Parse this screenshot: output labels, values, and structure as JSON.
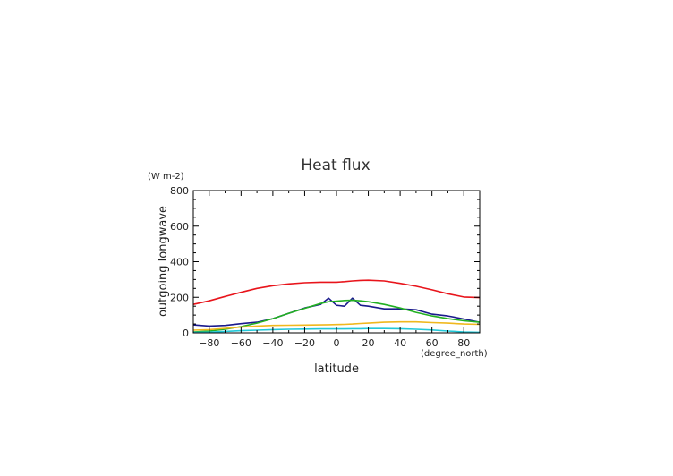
{
  "chart_data": {
    "type": "line",
    "title": "Heat flux",
    "xlabel": "latitude",
    "ylabel": "outgoing longwave",
    "xunits": "(degree_north)",
    "yunits": "(W m-2)",
    "xlim": [
      -90,
      90
    ],
    "ylim": [
      0,
      800
    ],
    "xticks": [
      -80,
      -60,
      -40,
      -20,
      0,
      20,
      40,
      60,
      80
    ],
    "yticks": [
      0,
      200,
      400,
      600,
      800
    ],
    "grid": false,
    "x": [
      -90,
      -80,
      -70,
      -60,
      -50,
      -40,
      -30,
      -20,
      -10,
      -5,
      0,
      5,
      10,
      15,
      20,
      30,
      40,
      50,
      60,
      70,
      80,
      90
    ],
    "series": [
      {
        "color": "#e8141b",
        "values": [
          160,
          180,
          205,
          228,
          250,
          265,
          275,
          282,
          285,
          285,
          285,
          288,
          292,
          295,
          296,
          292,
          278,
          262,
          242,
          220,
          202,
          198
        ]
      },
      {
        "color": "#1a1a8c",
        "values": [
          45,
          38,
          42,
          52,
          60,
          80,
          110,
          140,
          160,
          195,
          155,
          150,
          195,
          155,
          150,
          135,
          135,
          130,
          105,
          95,
          78,
          60
        ]
      },
      {
        "color": "#22b022",
        "values": [
          5,
          10,
          20,
          35,
          55,
          80,
          110,
          138,
          165,
          175,
          178,
          182,
          183,
          180,
          175,
          160,
          140,
          115,
          95,
          80,
          68,
          60
        ]
      },
      {
        "color": "#f0b81e",
        "values": [
          15,
          18,
          25,
          32,
          38,
          42,
          43,
          44,
          45,
          46,
          47,
          48,
          50,
          53,
          55,
          60,
          62,
          62,
          58,
          55,
          50,
          48
        ]
      },
      {
        "color": "#22c8d8",
        "values": [
          2,
          4,
          8,
          12,
          15,
          18,
          20,
          21,
          22,
          22,
          22,
          22,
          23,
          23,
          24,
          24,
          23,
          20,
          16,
          10,
          5,
          3
        ]
      }
    ]
  }
}
